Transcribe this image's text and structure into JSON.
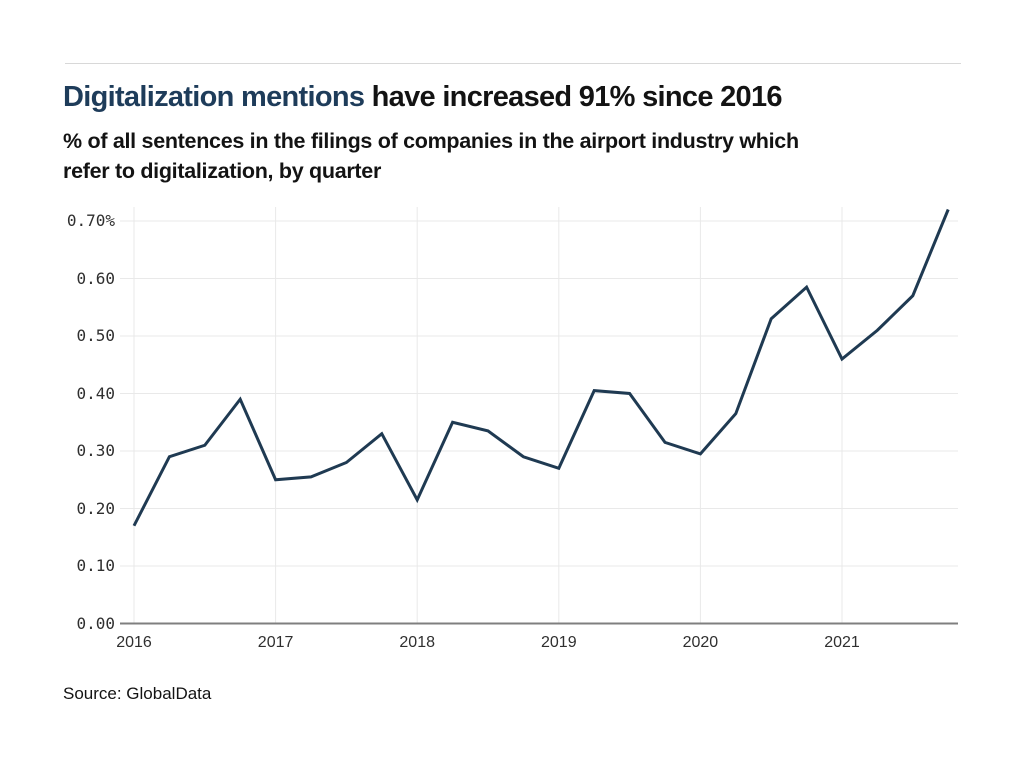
{
  "colors": {
    "line": "#1f3a52",
    "title_highlight": "#1e3c5a",
    "text": "#131313",
    "tick_text": "#2f2f2f",
    "grid": "#e9e9e9",
    "axis": "#7f7f7f",
    "rule": "#d8d8d8"
  },
  "chart_data": {
    "type": "line",
    "title_highlight": "Digitalization mentions",
    "title_rest": " have increased 91% since 2016",
    "subtitle_lines": [
      "% of all sentences in the filings of companies in the airport industry which",
      "refer to digitalization, by quarter"
    ],
    "source": "Source: GlobalData",
    "x": [
      "2016 Q1",
      "2016 Q2",
      "2016 Q3",
      "2016 Q4",
      "2017 Q1",
      "2017 Q2",
      "2017 Q3",
      "2017 Q4",
      "2018 Q1",
      "2018 Q2",
      "2018 Q3",
      "2018 Q4",
      "2019 Q1",
      "2019 Q2",
      "2019 Q3",
      "2019 Q4",
      "2020 Q1",
      "2020 Q2",
      "2020 Q3",
      "2020 Q4",
      "2021 Q1",
      "2021 Q2",
      "2021 Q3",
      "2021 Q4"
    ],
    "values": [
      0.17,
      0.29,
      0.31,
      0.39,
      0.25,
      0.255,
      0.28,
      0.33,
      0.215,
      0.35,
      0.335,
      0.29,
      0.27,
      0.405,
      0.4,
      0.315,
      0.295,
      0.365,
      0.53,
      0.585,
      0.46,
      0.51,
      0.57,
      0.72
    ],
    "x_axis": {
      "tick_labels": [
        "2016",
        "2017",
        "2018",
        "2019",
        "2020",
        "2021"
      ],
      "ticks_every": "year"
    },
    "y_axis": {
      "tick_labels": [
        "0.70%",
        "0.60",
        "0.50",
        "0.40",
        "0.30",
        "0.20",
        "0.10",
        "0.00"
      ],
      "tick_values": [
        0.7,
        0.6,
        0.5,
        0.4,
        0.3,
        0.2,
        0.1,
        0.0
      ],
      "unit": "%"
    },
    "ylim": [
      0,
      0.7235
    ],
    "grid": true,
    "legend": false
  }
}
